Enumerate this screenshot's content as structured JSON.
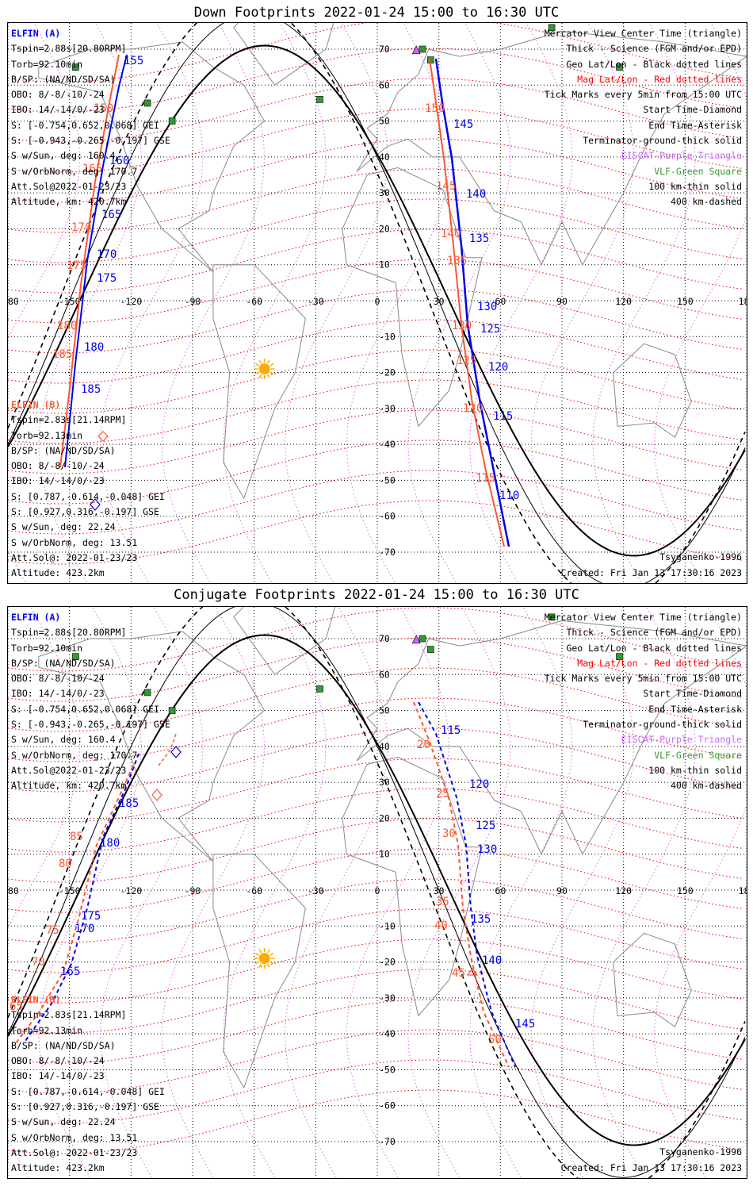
{
  "panels": [
    {
      "title": "Down Footprints 2022-01-24 15:00 to 16:30 UTC",
      "info_a": {
        "name": "ELFIN (A)",
        "lines": [
          "Tspin=2.88s[20.80RPM]",
          "Torb=92.10min",
          "B/SP: (NA/ND/SD/SA)",
          "OBO: 8/-8/-10/-24",
          "IBO: 14/-14/0/-23",
          "S: [-0.754,0.652,0.068] GEI",
          "S: [-0.943,-0.265,-0.197] GSE",
          "S w/Sun, deg: 160.4",
          "S w/OrbNorm, deg: 170.7",
          "Att.Sol@2022-01-23/23",
          "Altitude, km: 420.7km"
        ]
      },
      "info_b": {
        "name": "ELFIN (B)",
        "lines": [
          "Tspin=2.83s[21.14RPM]",
          "Torb=92.13min",
          "B/SP: (NA/ND/SD/SA)",
          "OBO: 8/-8/-10/-24",
          "IBO: 14/-14/0/-23",
          "S: [0.787,-0.614,-0.048] GEI",
          "S: [0.927,0.316,-0.197] GSE",
          "S w/Sun, deg: 22.24",
          "S w/OrbNorm, deg: 13.51",
          "Att.Sol@: 2022-01-23/23",
          "Altitude: 423.2km"
        ]
      },
      "tracks": {
        "a_labels": [
          "155",
          "160",
          "165",
          "170",
          "175",
          "180",
          "185",
          "145",
          "140",
          "135",
          "130",
          "125",
          "120",
          "115",
          "110"
        ],
        "b_labels": [
          "150",
          "165",
          "170",
          "175",
          "180",
          "185",
          "150",
          "145",
          "140",
          "135",
          "130",
          "125",
          "120",
          "115"
        ]
      }
    },
    {
      "title": "Conjugate Footprints 2022-01-24 15:00 to 16:30 UTC",
      "info_a": {
        "name": "ELFIN (A)",
        "lines": [
          "Tspin=2.88s[20.80RPM]",
          "Torb=92.10min",
          "B/SP: (NA/ND/SD/SA)",
          "OBO: 8/-8/-10/-24",
          "IBO: 14/-14/0/-23",
          "S: [-0.754,0.652,0.068] GEI",
          "S: [-0.943,-0.265,-0.197] GSE",
          "S w/Sun, deg: 160.4",
          "S w/OrbNorm, deg: 170.7",
          "Att.Sol@2022-01-23/23",
          "Altitude, km: 420.7km"
        ]
      },
      "info_b": {
        "name": "ELFIN (B)",
        "lines": [
          "Tspin=2.83s[21.14RPM]",
          "Torb=92.13min",
          "B/SP: (NA/ND/SD/SA)",
          "OBO: 8/-8/-10/-24",
          "IBO: 14/-14/0/-23",
          "S: [0.787,-0.614,-0.048] GEI",
          "S: [0.927,0.316,-0.197] GSE",
          "S w/Sun, deg: 22.24",
          "S w/OrbNorm, deg: 13.51",
          "Att.Sol@: 2022-01-23/23",
          "Altitude: 423.2km"
        ]
      },
      "tracks": {
        "a_labels": [
          "185",
          "180",
          "175",
          "170",
          "165",
          "115",
          "120",
          "125",
          "130",
          "135",
          "140",
          "145"
        ],
        "b_labels": [
          "85",
          "80",
          "75",
          "70",
          "65",
          "20",
          "25",
          "30",
          "35",
          "40",
          "45",
          "50"
        ]
      }
    }
  ],
  "legend": [
    {
      "text": "Mercator View Center Time (triangle)",
      "color": "#000000"
    },
    {
      "text": "Thick - Science (FGM and/or EPD)",
      "color": "#000000"
    },
    {
      "text": "Geo Lat/Lon - Black dotted lines",
      "color": "#000000"
    },
    {
      "text": "Mag Lat/Lon - Red dotted lines",
      "color": "#ff0000"
    },
    {
      "text": "Tick Marks every 5min from 15:00 UTC",
      "color": "#000000"
    },
    {
      "text": "Start Time-Diamond",
      "color": "#000000"
    },
    {
      "text": "End Time-Asterisk",
      "color": "#000000"
    },
    {
      "text": "Terminator-ground-thick solid",
      "color": "#000000"
    },
    {
      "text": "EISCAT-Purple Triangle",
      "color": "#cc66ff"
    },
    {
      "text": "VLF-Green Square",
      "color": "#339933"
    },
    {
      "text": "100 km-thin solid",
      "color": "#000000"
    },
    {
      "text": "400 km-dashed",
      "color": "#000000"
    }
  ],
  "model": "Tsyganenko-1996",
  "created": "Created: Fri Jan 13 17:30:16 2023",
  "axes": {
    "lon_ticks": [
      "-180",
      "-150",
      "-120",
      "-90",
      "-60",
      "-30",
      "0",
      "30",
      "60",
      "90",
      "120",
      "150",
      "180"
    ],
    "lat_ticks": [
      "70",
      "60",
      "50",
      "40",
      "30",
      "20",
      "10",
      "0",
      "-10",
      "-20",
      "-30",
      "-40",
      "-50",
      "-60",
      "-70"
    ]
  },
  "colors": {
    "probe_a": "#0000ee",
    "probe_b": "#ff5533",
    "mag_grid": "#ee0000",
    "vlf": "#339933",
    "eiscat": "#cc66ff",
    "sun": "#ffaa00"
  }
}
